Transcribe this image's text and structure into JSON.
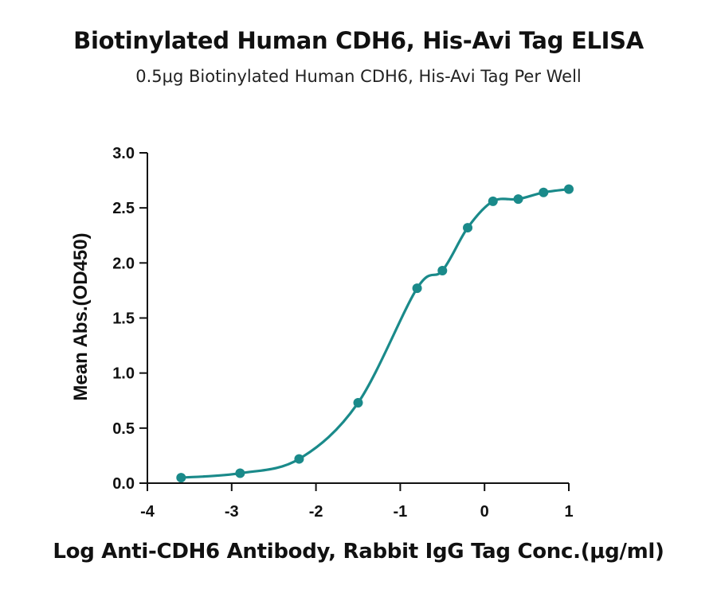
{
  "chart_data": {
    "type": "scatter",
    "title": "Biotinylated Human CDH6, His-Avi Tag ELISA",
    "subtitle": "0.5μg Biotinylated Human CDH6, His-Avi Tag Per Well",
    "xlabel": "Log Anti-CDH6 Antibody, Rabbit IgG Tag Conc.(μg/ml)",
    "ylabel": "Mean Abs.(OD450)",
    "xlim": [
      -4,
      1
    ],
    "ylim": [
      0,
      3.0
    ],
    "x_ticks": [
      -4,
      -3,
      -2,
      -1,
      0,
      1
    ],
    "x_tick_labels": [
      "-4",
      "-3",
      "-2",
      "-1",
      "0",
      "1"
    ],
    "y_ticks": [
      0,
      0.5,
      1.0,
      1.5,
      2.0,
      2.5,
      3.0
    ],
    "y_tick_labels": [
      "0.0",
      "0.5",
      "1.0",
      "1.5",
      "2.0",
      "2.5",
      "3.0"
    ],
    "grid": false,
    "color": "#1a8a8a",
    "series": [
      {
        "x": [
          -3.6,
          -2.9,
          -2.2,
          -1.5,
          -0.8,
          -0.5,
          -0.2,
          0.1,
          0.4,
          0.7,
          1.0
        ],
        "y": [
          0.05,
          0.09,
          0.22,
          0.73,
          1.77,
          1.93,
          2.32,
          2.56,
          2.58,
          2.64,
          2.67
        ]
      }
    ]
  }
}
